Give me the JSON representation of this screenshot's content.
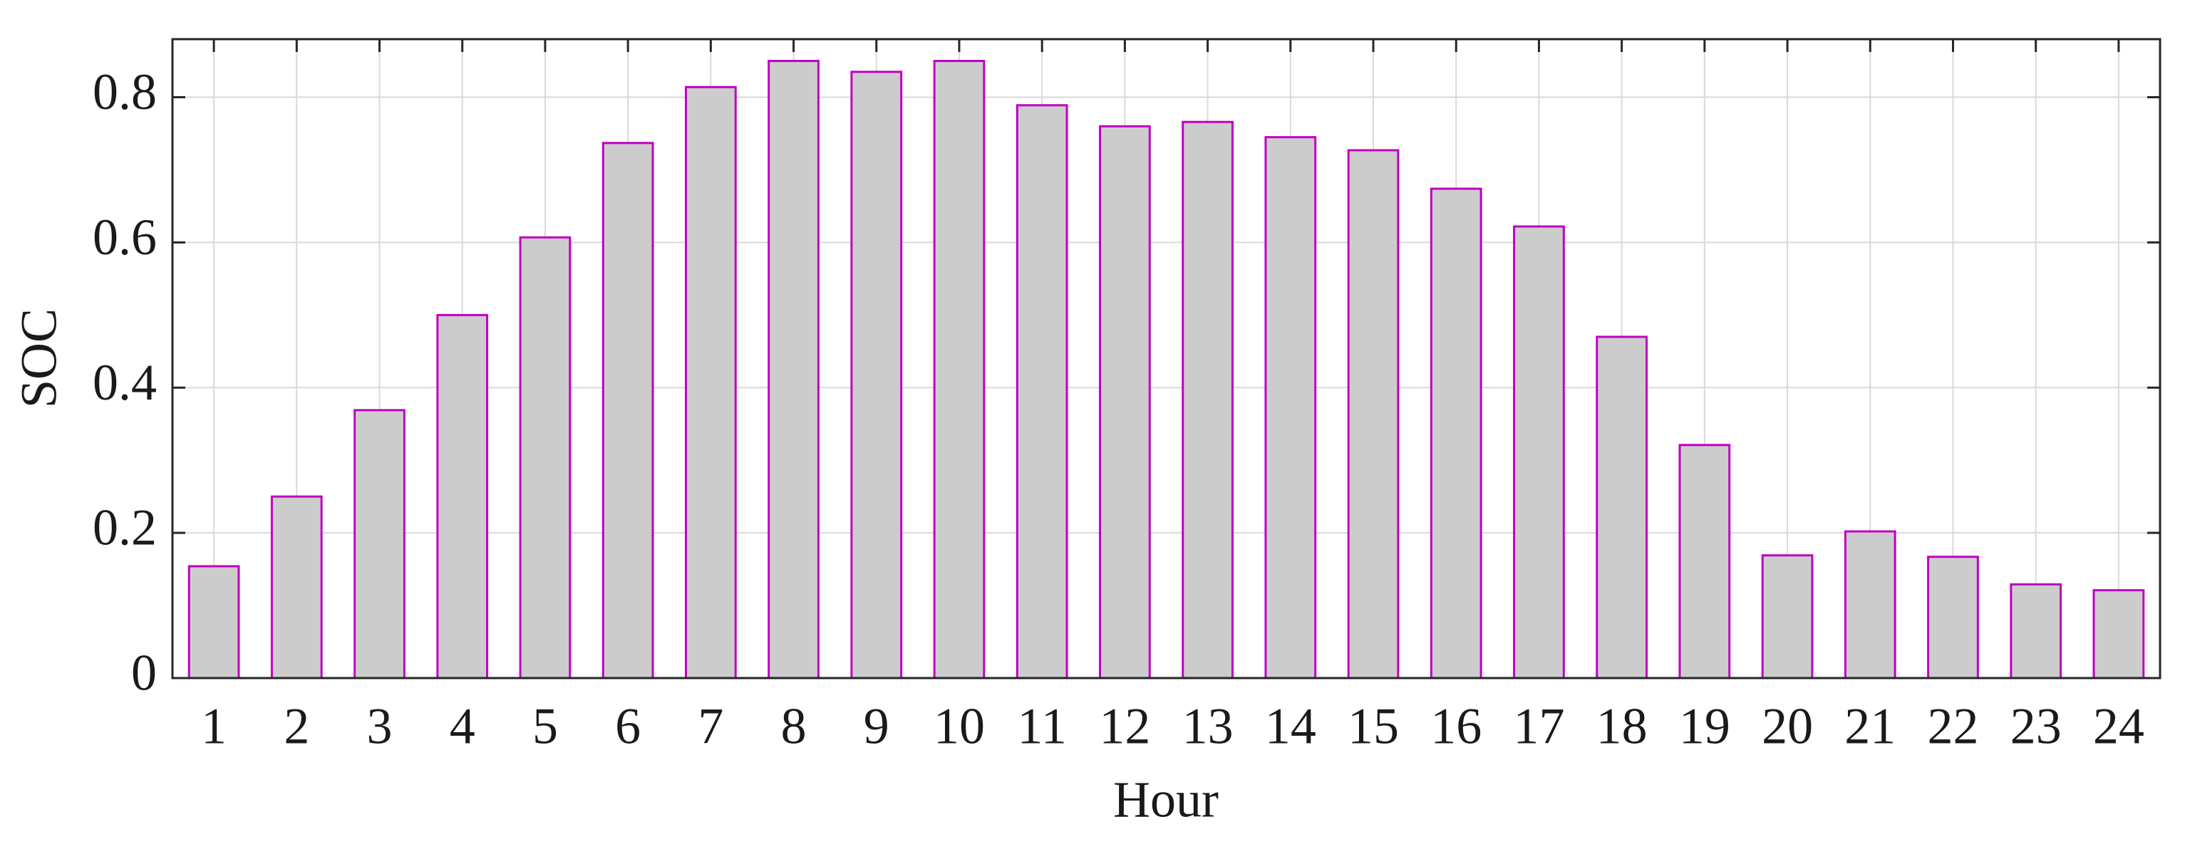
{
  "chart_data": {
    "type": "bar",
    "x": [
      1,
      2,
      3,
      4,
      5,
      6,
      7,
      8,
      9,
      10,
      11,
      12,
      13,
      14,
      15,
      16,
      17,
      18,
      19,
      20,
      21,
      22,
      23,
      24
    ],
    "values": [
      0.154,
      0.25,
      0.369,
      0.5,
      0.607,
      0.737,
      0.814,
      0.85,
      0.835,
      0.85,
      0.789,
      0.76,
      0.766,
      0.745,
      0.727,
      0.674,
      0.622,
      0.47,
      0.321,
      0.169,
      0.202,
      0.167,
      0.129,
      0.121
    ],
    "color": "#cccccc",
    "edge_color": "#c000c0",
    "xlabel": "Hour",
    "ylabel": "SOC",
    "xlim": [
      0.5,
      24.5
    ],
    "xticks": [
      1,
      2,
      3,
      4,
      5,
      6,
      7,
      8,
      9,
      10,
      11,
      12,
      13,
      14,
      15,
      16,
      17,
      18,
      19,
      20,
      21,
      22,
      23,
      24
    ],
    "ylim": [
      0,
      0.88
    ],
    "yticks": [
      0,
      0.2,
      0.4,
      0.6,
      0.8
    ],
    "grid": true
  }
}
